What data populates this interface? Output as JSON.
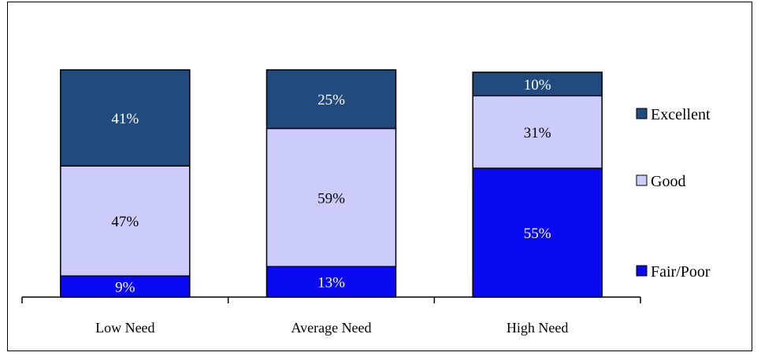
{
  "chart_data": {
    "type": "bar",
    "stacked": true,
    "percent_stacked": true,
    "categories": [
      "Low Need",
      "Average Need",
      "High Need"
    ],
    "series": [
      {
        "name": "Fair/Poor",
        "values": [
          9,
          13,
          55
        ],
        "labels": [
          "9%",
          "13%",
          "55%"
        ],
        "color": "#0A0AF2"
      },
      {
        "name": "Good",
        "values": [
          47,
          59,
          31
        ],
        "labels": [
          "47%",
          "59%",
          "31%"
        ],
        "color": "#CCCCFB"
      },
      {
        "name": "Excellent",
        "values": [
          41,
          25,
          10
        ],
        "labels": [
          "41%",
          "25%",
          "10%"
        ],
        "color": "#214A7E"
      }
    ],
    "legend_position": "right",
    "grid": false,
    "title": "",
    "xlabel": "",
    "ylabel": ""
  }
}
